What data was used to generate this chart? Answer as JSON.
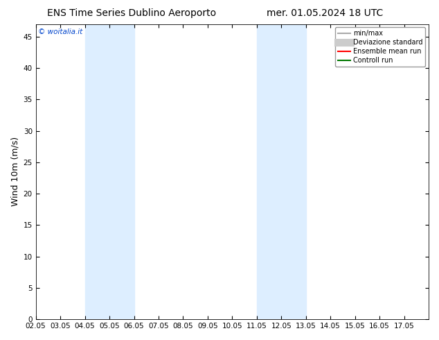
{
  "title_left": "ENS Time Series Dublino Aeroporto",
  "title_right": "mer. 01.05.2024 18 UTC",
  "ylabel": "Wind 10m (m/s)",
  "watermark": "© woitalia.it",
  "xlim": [
    0,
    16
  ],
  "ylim": [
    0,
    47
  ],
  "yticks": [
    0,
    5,
    10,
    15,
    20,
    25,
    30,
    35,
    40,
    45
  ],
  "xtick_labels": [
    "02.05",
    "03.05",
    "04.05",
    "05.05",
    "06.05",
    "07.05",
    "08.05",
    "09.05",
    "10.05",
    "11.05",
    "12.05",
    "13.05",
    "14.05",
    "15.05",
    "16.05",
    "17.05"
  ],
  "shaded_bands": [
    {
      "x_start": 2,
      "x_end": 3,
      "color": "#ddeeff"
    },
    {
      "x_start": 3,
      "x_end": 4,
      "color": "#ddeeff"
    },
    {
      "x_start": 9,
      "x_end": 10,
      "color": "#ddeeff"
    },
    {
      "x_start": 10,
      "x_end": 11,
      "color": "#ddeeff"
    }
  ],
  "background_color": "#ffffff",
  "plot_background": "#ffffff",
  "legend_entries": [
    {
      "label": "min/max",
      "color": "#aaaaaa",
      "lw": 1.5
    },
    {
      "label": "Deviazione standard",
      "color": "#cccccc",
      "lw": 8
    },
    {
      "label": "Ensemble mean run",
      "color": "#ff0000",
      "lw": 1.5
    },
    {
      "label": "Controll run",
      "color": "#007700",
      "lw": 1.5
    }
  ],
  "title_fontsize": 10,
  "tick_fontsize": 7.5,
  "ylabel_fontsize": 9,
  "watermark_color": "#0044cc",
  "grid_color": "#ffffff"
}
